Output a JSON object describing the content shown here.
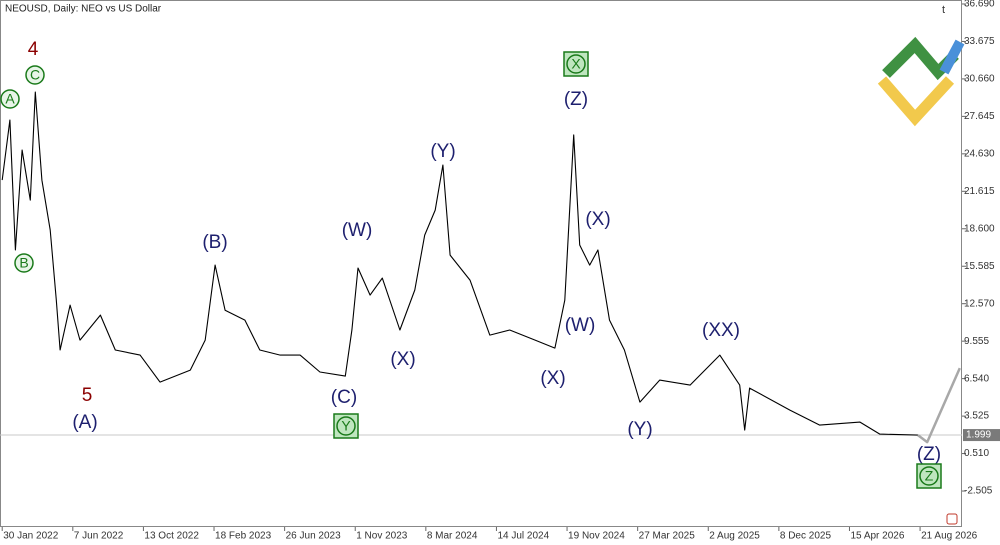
{
  "chart_data": {
    "type": "line",
    "title": "NEOUSD, Daily:  NEO vs US Dollar",
    "xlim": [
      "2022-01-26",
      "2026-11-05"
    ],
    "ylim": [
      -5.4,
      37.01
    ],
    "yticks": [
      {
        "value": 36.69,
        "label": "36.690"
      },
      33.675,
      {
        "value": 30.66,
        "label": "30.660"
      },
      27.645,
      {
        "value": 24.63,
        "label": "24.630"
      },
      21.615,
      {
        "value": 18.6,
        "label": "18.600"
      },
      15.585,
      {
        "value": 12.57,
        "label": "12.570"
      },
      9.555,
      {
        "value": 6.54,
        "label": "6.540"
      },
      3.525,
      {
        "value": 0.51,
        "label": "0.510"
      },
      -2.505
    ],
    "xticks": [
      {
        "value": "2022-01-30",
        "label": "30 Jan 2022"
      },
      {
        "value": "2022-06-07",
        "label": "7 Jun 2022"
      },
      {
        "value": "2022-10-13",
        "label": "13 Oct 2022"
      },
      {
        "value": "2023-02-18",
        "label": "18 Feb 2023"
      },
      {
        "value": "2023-06-26",
        "label": "26 Jun 2023"
      },
      {
        "value": "2023-11-01",
        "label": "1 Nov 2023"
      },
      {
        "value": "2024-03-08",
        "label": "8 Mar 2024"
      },
      {
        "value": "2024-07-14",
        "label": "14 Jul 2024"
      },
      {
        "value": "2024-11-19",
        "label": "19 Nov 2024"
      },
      {
        "value": "2025-03-27",
        "label": "27 Mar 2025"
      },
      {
        "value": "2025-08-02",
        "label": "2 Aug 2025"
      },
      {
        "value": "2025-12-08",
        "label": "8 Dec 2025"
      },
      {
        "value": "2026-04-15",
        "label": "15 Apr 2026"
      },
      {
        "value": "2026-08-21",
        "label": "21 Aug 2026"
      }
    ],
    "last_price": 1.999,
    "series": [
      {
        "color": "#000000",
        "x": [
          "2022-01-30",
          "2022-02-13",
          "2022-02-23",
          "2022-03-07",
          "2022-03-22",
          "2022-03-31",
          "2022-04-12",
          "2022-04-27",
          "2022-05-08",
          "2022-05-15",
          "2022-06-02",
          "2022-06-20",
          "2022-07-27",
          "2022-08-23",
          "2022-10-07",
          "2022-11-12",
          "2023-01-06",
          "2023-02-02",
          "2023-02-20",
          "2023-03-10",
          "2023-04-15",
          "2023-05-12",
          "2023-06-18",
          "2023-07-24",
          "2023-08-29",
          "2023-10-14",
          "2023-10-26",
          "2023-11-06",
          "2023-11-28",
          "2023-12-20",
          "2024-01-21",
          "2024-02-17",
          "2024-03-06",
          "2024-03-25",
          "2024-04-08",
          "2024-04-21",
          "2024-05-27",
          "2024-07-02",
          "2024-08-07",
          "2024-09-22",
          "2024-10-28",
          "2024-11-15",
          "2024-12-01",
          "2024-12-12",
          "2024-12-30",
          "2025-01-14",
          "2025-02-04",
          "2025-03-03",
          "2025-03-31",
          "2025-05-06",
          "2025-06-30",
          "2025-08-23",
          "2025-09-28",
          "2025-10-07",
          "2025-10-16",
          "2025-12-28",
          "2026-02-20",
          "2026-05-04",
          "2026-06-09",
          "2026-08-17"
        ],
        "values": [
          22.52,
          27.35,
          16.89,
          24.94,
          20.91,
          29.61,
          22.52,
          18.5,
          12.86,
          8.84,
          12.46,
          9.64,
          11.65,
          8.84,
          8.43,
          6.26,
          7.23,
          9.64,
          15.68,
          12.05,
          11.25,
          8.84,
          8.43,
          8.43,
          7.07,
          6.74,
          10.45,
          15.44,
          13.26,
          14.63,
          10.45,
          13.67,
          18.09,
          20.1,
          23.73,
          16.48,
          14.47,
          10.04,
          10.45,
          9.64,
          9.0,
          12.86,
          26.15,
          17.29,
          15.68,
          16.89,
          11.25,
          8.84,
          4.65,
          6.42,
          6.02,
          8.43,
          6.02,
          2.4,
          5.78,
          4.01,
          2.8,
          3.04,
          2.08,
          1.999
        ]
      },
      {
        "color": "#a8a8a8",
        "x": [
          "2026-08-17",
          "2026-09-03",
          "2026-11-01"
        ],
        "values": [
          1.999,
          1.43,
          7.39
        ]
      }
    ],
    "annotations": [
      "4",
      "C",
      "A",
      "B",
      "5",
      "(A)",
      "(B)",
      "(W)",
      "(C)",
      "Y",
      "(X)",
      "(Y)",
      "(X)",
      "X",
      "(Z)",
      "(X)",
      "(W)",
      "(Y)",
      "(XX)",
      "(Z)",
      "Z"
    ]
  }
}
